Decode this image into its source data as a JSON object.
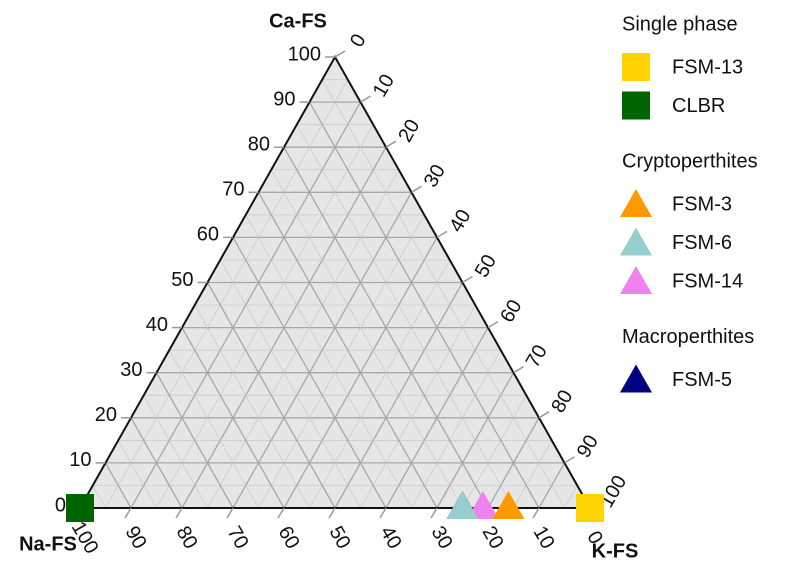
{
  "chart_data": {
    "type": "ternary",
    "grid": true,
    "minor_grid": true,
    "axes": [
      {
        "name": "Ca-FS",
        "lim": [
          0,
          100
        ],
        "ticks": [
          0,
          10,
          20,
          30,
          40,
          50,
          60,
          70,
          80,
          90,
          100
        ]
      },
      {
        "name": "K-FS",
        "lim": [
          0,
          100
        ],
        "ticks": [
          0,
          10,
          20,
          30,
          40,
          50,
          60,
          70,
          80,
          90,
          100
        ]
      },
      {
        "name": "Na-FS",
        "lim": [
          0,
          100
        ],
        "ticks": [
          0,
          10,
          20,
          30,
          40,
          50,
          60,
          70,
          80,
          90,
          100
        ]
      }
    ],
    "groups": [
      {
        "name": "Single phase",
        "series": [
          {
            "name": "FSM-13",
            "color": "#ffd400",
            "marker": "square",
            "ca": [
              0
            ],
            "k": [
              100
            ],
            "na": [
              0
            ]
          },
          {
            "name": "CLBR",
            "color": "#006400",
            "marker": "square",
            "ca": [
              0
            ],
            "k": [
              0
            ],
            "na": [
              100
            ]
          }
        ]
      },
      {
        "name": "Cryptoperthites",
        "series": [
          {
            "name": "FSM-3",
            "color": "#ff9900",
            "marker": "triangle",
            "ca": [
              0
            ],
            "k": [
              84
            ],
            "na": [
              16
            ]
          },
          {
            "name": "FSM-6",
            "color": "#96cdcd",
            "marker": "triangle",
            "ca": [
              0
            ],
            "k": [
              75
            ],
            "na": [
              25
            ]
          },
          {
            "name": "FSM-14",
            "color": "#ee82ee",
            "marker": "triangle",
            "ca": [
              0
            ],
            "k": [
              79
            ],
            "na": [
              21
            ]
          }
        ]
      },
      {
        "name": "Macroperthites",
        "series": [
          {
            "name": "FSM-5",
            "color": "#000080",
            "marker": "triangle",
            "ca": [
              0
            ],
            "k": [
              75
            ],
            "na": [
              25
            ]
          }
        ]
      }
    ]
  }
}
